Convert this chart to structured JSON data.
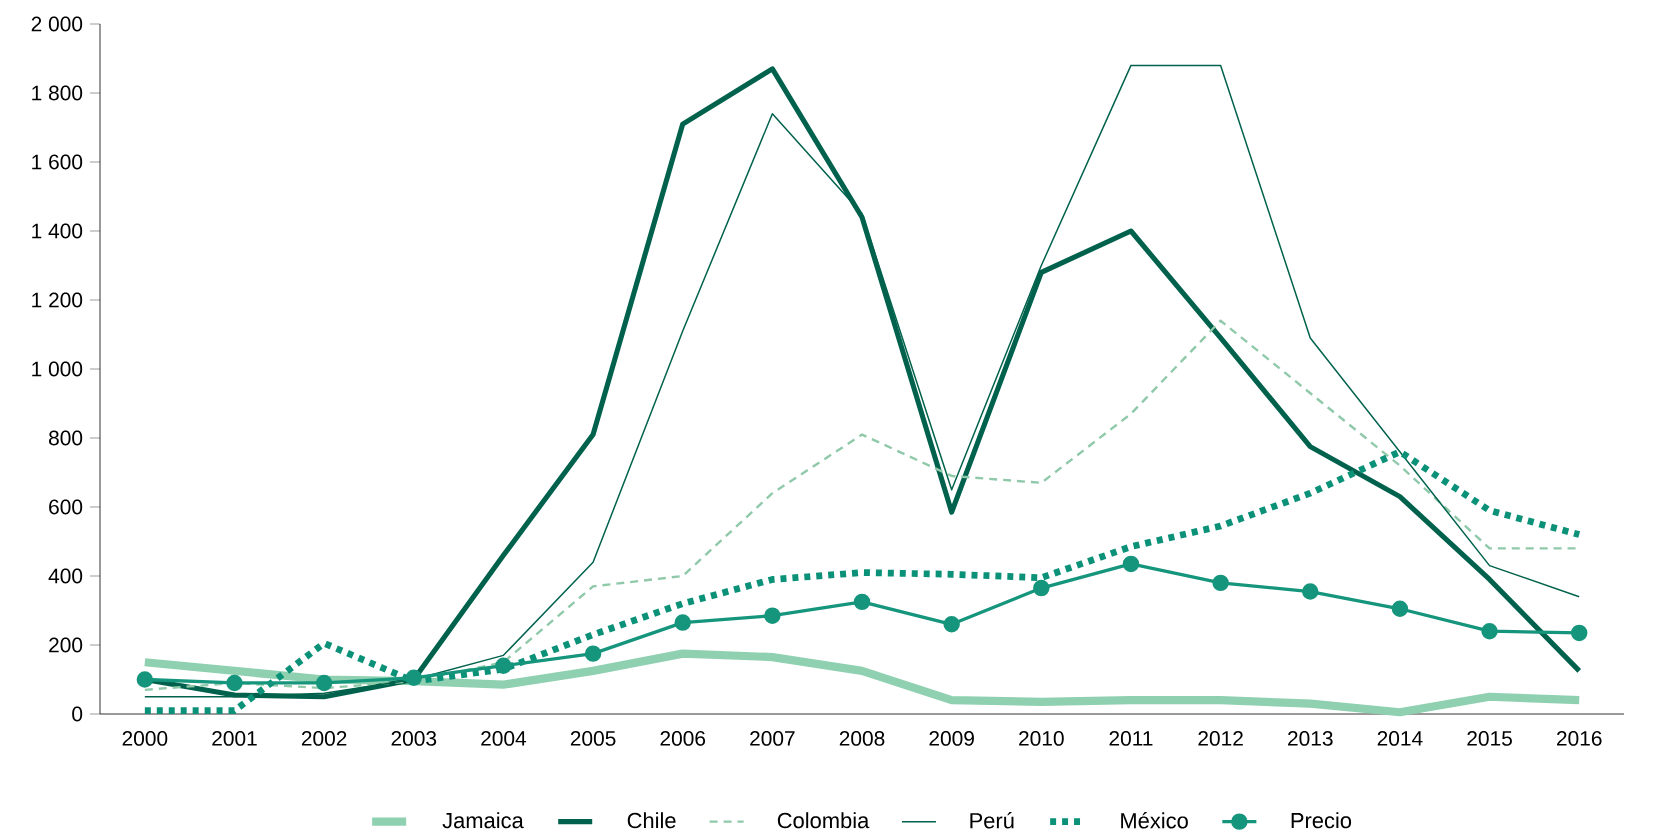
{
  "chart_data": {
    "type": "line",
    "categories": [
      "2000",
      "2001",
      "2002",
      "2003",
      "2004",
      "2005",
      "2006",
      "2007",
      "2008",
      "2009",
      "2010",
      "2011",
      "2012",
      "2013",
      "2014",
      "2015",
      "2016"
    ],
    "series": [
      {
        "name": "Jamaica",
        "color": "#8fd0b0",
        "line_style": "solid",
        "marker": "none",
        "values": [
          150,
          125,
          100,
          95,
          85,
          125,
          175,
          165,
          125,
          40,
          35,
          40,
          40,
          30,
          5,
          50,
          40
        ]
      },
      {
        "name": "Chile",
        "color": "#00624c",
        "line_style": "solid",
        "marker": "none",
        "values": [
          100,
          55,
          50,
          100,
          460,
          810,
          1710,
          1870,
          1440,
          585,
          1280,
          1400,
          1090,
          775,
          630,
          390,
          125
        ]
      },
      {
        "name": "Colombia",
        "color": "#8fc9a9",
        "line_style": "dashed",
        "marker": "none",
        "values": [
          70,
          90,
          75,
          95,
          150,
          370,
          400,
          640,
          810,
          690,
          670,
          870,
          1140,
          930,
          720,
          480,
          480
        ]
      },
      {
        "name": "Perú",
        "color": "#00624c",
        "line_style": "solid",
        "marker": "none",
        "values": [
          50,
          50,
          60,
          100,
          170,
          440,
          1110,
          1740,
          1450,
          650,
          1300,
          1880,
          1880,
          1090,
          760,
          430,
          340
        ]
      },
      {
        "name": "México",
        "color": "#0a9178",
        "line_style": "dotted",
        "marker": "none",
        "values": [
          10,
          10,
          205,
          95,
          130,
          230,
          320,
          390,
          410,
          405,
          395,
          485,
          545,
          640,
          760,
          590,
          520
        ]
      },
      {
        "name": "Precio",
        "color": "#16957d",
        "line_style": "solid",
        "marker": "circle",
        "values": [
          100,
          90,
          90,
          105,
          140,
          175,
          265,
          285,
          325,
          260,
          365,
          435,
          380,
          355,
          305,
          240,
          235
        ]
      }
    ],
    "ylim": [
      0,
      2000
    ],
    "yticks": [
      0,
      200,
      400,
      600,
      800,
      {
        "value": 1000,
        "label": "1 000"
      },
      {
        "value": 1200,
        "label": "1 200"
      },
      {
        "value": 1400,
        "label": "1 400"
      },
      {
        "value": 1600,
        "label": "1 600"
      },
      {
        "value": 1800,
        "label": "1 800"
      },
      {
        "value": 2000,
        "label": "2 000"
      }
    ],
    "grid": false,
    "legend": "bottom"
  }
}
